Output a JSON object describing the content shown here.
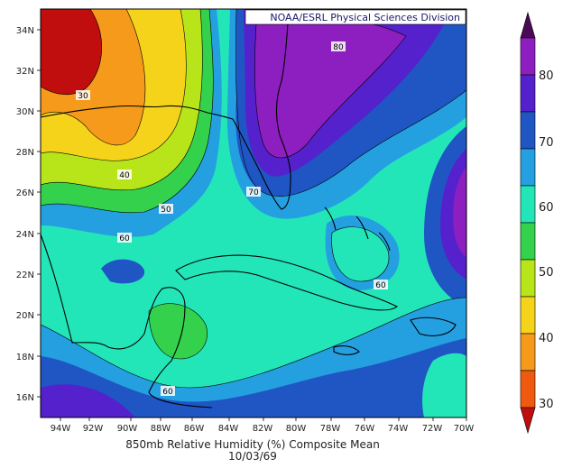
{
  "credit": "NOAA/ESRL Physical Sciences Division",
  "title": "850mb Relative Humidity (%) Composite Mean",
  "date": "10/03/69",
  "lat_ticks": [
    "34N",
    "32N",
    "30N",
    "28N",
    "26N",
    "24N",
    "22N",
    "20N",
    "18N",
    "16N"
  ],
  "lon_ticks": [
    "94W",
    "92W",
    "90W",
    "88W",
    "86W",
    "84W",
    "82W",
    "80W",
    "78W",
    "76W",
    "74W",
    "72W",
    "70W"
  ],
  "contour_labels": [
    "30",
    "40",
    "50",
    "60",
    "70",
    "80",
    "60",
    "60"
  ],
  "colorbar": {
    "levels": [
      "80",
      "70",
      "60",
      "50",
      "40",
      "30"
    ],
    "colors": [
      "#4b0a55",
      "#8d1fc0",
      "#5521cc",
      "#1f56c4",
      "#24a0e0",
      "#23e6b8",
      "#34d14c",
      "#b8e41a",
      "#f5d31b",
      "#f59a1a",
      "#f05a10",
      "#c00d0d"
    ]
  }
}
